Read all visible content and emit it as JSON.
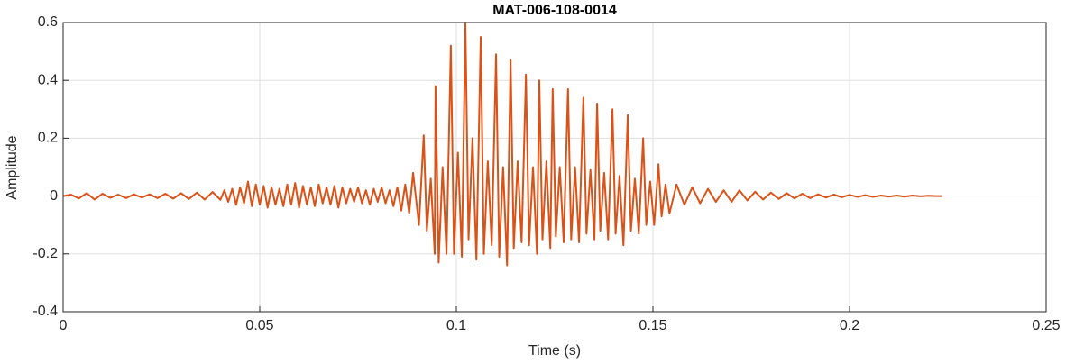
{
  "chart_data": {
    "type": "line",
    "title": "MAT-006-108-0014",
    "x_label": "Time (s)",
    "y_label": "Amplitude",
    "color": "#D95319",
    "grid": true,
    "xlim": [
      0,
      0.25
    ],
    "xticks": [
      0,
      0.05,
      0.1,
      0.15,
      0.2,
      0.25
    ],
    "ylim": [
      -0.4,
      0.6
    ],
    "yticks": [
      -0.4,
      -0.2,
      0,
      0.2,
      0.4,
      0.6
    ],
    "x": [
      0,
      0.002,
      0.004,
      0.006,
      0.008,
      0.01,
      0.012,
      0.014,
      0.016,
      0.018,
      0.02,
      0.022,
      0.024,
      0.026,
      0.028,
      0.03,
      0.032,
      0.034,
      0.036,
      0.038,
      0.04,
      0.041,
      0.042,
      0.043,
      0.044,
      0.045,
      0.046,
      0.047,
      0.048,
      0.049,
      0.05,
      0.051,
      0.052,
      0.053,
      0.054,
      0.055,
      0.056,
      0.057,
      0.058,
      0.059,
      0.06,
      0.061,
      0.062,
      0.063,
      0.064,
      0.065,
      0.066,
      0.067,
      0.068,
      0.069,
      0.07,
      0.071,
      0.072,
      0.073,
      0.074,
      0.075,
      0.076,
      0.077,
      0.078,
      0.079,
      0.08,
      0.081,
      0.082,
      0.083,
      0.084,
      0.085,
      0.086,
      0.087,
      0.088,
      0.089,
      0.0905,
      0.0917,
      0.0925,
      0.0935,
      0.0945,
      0.0947,
      0.0955,
      0.0965,
      0.0975,
      0.0986,
      0.0994,
      0.1004,
      0.1014,
      0.1023,
      0.1031,
      0.1041,
      0.1051,
      0.1062,
      0.107,
      0.108,
      0.109,
      0.1101,
      0.1109,
      0.1119,
      0.1129,
      0.1138,
      0.1146,
      0.1156,
      0.1166,
      0.1177,
      0.1185,
      0.1195,
      0.1205,
      0.1211,
      0.1219,
      0.1229,
      0.1239,
      0.1245,
      0.1253,
      0.1263,
      0.1273,
      0.1284,
      0.1292,
      0.1302,
      0.1312,
      0.1323,
      0.1331,
      0.1341,
      0.1351,
      0.1358,
      0.1366,
      0.1376,
      0.1386,
      0.1397,
      0.1405,
      0.1415,
      0.1425,
      0.1436,
      0.1444,
      0.1454,
      0.1464,
      0.1475,
      0.1483,
      0.1493,
      0.1503,
      0.1514,
      0.1522,
      0.1532,
      0.1542,
      0.156,
      0.158,
      0.16,
      0.162,
      0.164,
      0.166,
      0.168,
      0.17,
      0.172,
      0.174,
      0.176,
      0.178,
      0.18,
      0.182,
      0.184,
      0.186,
      0.188,
      0.19,
      0.192,
      0.194,
      0.196,
      0.198,
      0.2,
      0.202,
      0.204,
      0.206,
      0.208,
      0.21,
      0.212,
      0.214,
      0.216,
      0.218,
      0.22,
      0.222,
      0.2235
    ],
    "values": [
      0,
      0.005,
      -0.008,
      0.01,
      -0.012,
      0.008,
      -0.006,
      0.005,
      -0.007,
      0.006,
      -0.005,
      0.006,
      -0.007,
      0.008,
      -0.009,
      0.01,
      -0.01,
      0.012,
      -0.012,
      0.014,
      -0.013,
      0.02,
      -0.02,
      0.025,
      -0.03,
      0.03,
      -0.025,
      0.05,
      -0.035,
      0.04,
      -0.03,
      0.035,
      -0.04,
      0.03,
      -0.03,
      0.025,
      -0.035,
      0.04,
      -0.03,
      0.045,
      -0.04,
      0.035,
      -0.03,
      0.03,
      -0.035,
      0.04,
      -0.025,
      0.03,
      -0.03,
      0.035,
      -0.04,
      0.03,
      -0.025,
      0.025,
      -0.02,
      0.03,
      -0.025,
      0.02,
      -0.03,
      0.025,
      -0.02,
      0.03,
      -0.025,
      0.02,
      -0.035,
      0.03,
      -0.05,
      0.04,
      -0.06,
      0.08,
      -0.1,
      0.21,
      -0.12,
      0.06,
      -0.2,
      0.38,
      -0.23,
      0.1,
      -0.2,
      0.52,
      -0.2,
      0.15,
      -0.21,
      0.6,
      -0.15,
      0.2,
      -0.22,
      0.55,
      -0.2,
      0.12,
      -0.17,
      0.49,
      -0.21,
      0.1,
      -0.24,
      0.47,
      -0.18,
      0.12,
      -0.16,
      0.42,
      -0.17,
      0.1,
      -0.2,
      0.4,
      -0.15,
      0.12,
      -0.18,
      0.37,
      -0.14,
      0.1,
      -0.16,
      0.37,
      -0.15,
      0.1,
      -0.16,
      0.34,
      -0.13,
      0.09,
      -0.15,
      0.32,
      -0.12,
      0.08,
      -0.15,
      0.3,
      -0.13,
      0.07,
      -0.17,
      0.28,
      -0.12,
      0.06,
      -0.13,
      0.2,
      -0.1,
      0.05,
      -0.1,
      0.11,
      -0.07,
      0.04,
      -0.06,
      0.04,
      -0.03,
      0.03,
      -0.025,
      0.025,
      -0.02,
      0.02,
      -0.02,
      0.02,
      -0.015,
      0.015,
      -0.012,
      0.012,
      -0.01,
      0.01,
      -0.008,
      0.008,
      -0.007,
      0.006,
      -0.005,
      0.005,
      -0.004,
      0.004,
      -0.003,
      0.003,
      -0.003,
      0.002,
      -0.002,
      0.002,
      -0.002,
      0.002,
      -0.001,
      0.001,
      0,
      0
    ]
  }
}
